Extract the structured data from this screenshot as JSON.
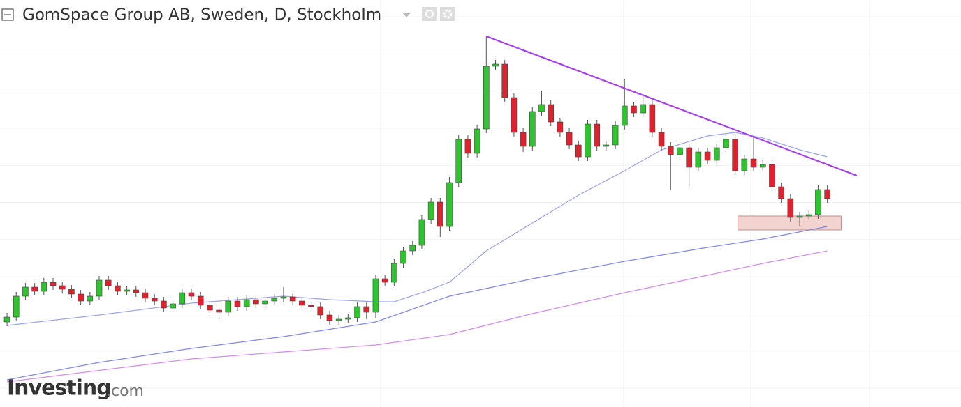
{
  "chart_data": {
    "type": "candlestick",
    "title": "GomSpace Group AB, Sweden, D, Stockholm",
    "xlim": [
      -0.76,
      103.5
    ],
    "ylim": [
      0,
      58.4
    ],
    "up_color": "#2fc42f",
    "down_color": "#e0212e",
    "open": [
      12.2,
      12.9,
      15.9,
      17.2,
      16.6,
      17.9,
      17.4,
      16.9,
      16.2,
      15.2,
      15.9,
      18.2,
      17.4,
      16.6,
      16.8,
      16.4,
      15.6,
      15.2,
      14.2,
      14.8,
      16.4,
      15.9,
      14.6,
      13.9,
      13.6,
      15.2,
      14.4,
      15.4,
      14.8,
      15.2,
      15.6,
      15.8,
      15.2,
      14.6,
      14.4,
      13.2,
      12.4,
      12.6,
      12.8,
      14.4,
      13.6,
      18.4,
      17.9,
      20.6,
      22.4,
      23.2,
      26.9,
      29.4,
      25.9,
      32.2,
      38.4,
      36.4,
      39.9,
      48.9,
      49.2,
      44.4,
      39.4,
      37.4,
      42.4,
      43.4,
      40.9,
      39.4,
      37.6,
      35.9,
      40.6,
      37.4,
      37.6,
      40.4,
      43.2,
      42.2,
      43.4,
      39.4,
      37.4,
      36.2,
      37.2,
      34.4,
      36.6,
      35.4,
      37.2,
      38.4,
      33.9,
      35.6,
      34.4,
      34.8,
      31.6,
      29.9,
      27.2,
      27.4,
      27.6,
      31.2
    ],
    "high": [
      13.5,
      16.5,
      17.8,
      17.8,
      18.5,
      18.5,
      18.0,
      17.5,
      16.8,
      16.5,
      18.8,
      18.8,
      18.0,
      17.4,
      17.4,
      17.0,
      16.2,
      15.8,
      15.4,
      17.0,
      17.0,
      16.5,
      15.2,
      14.5,
      15.8,
      15.8,
      16.0,
      16.0,
      15.8,
      16.2,
      17.2,
      16.4,
      15.8,
      15.2,
      15.0,
      13.8,
      13.2,
      13.4,
      15.0,
      15.0,
      19.0,
      19.0,
      21.2,
      23.0,
      23.8,
      27.5,
      30.0,
      30.0,
      33.0,
      39.0,
      39.0,
      40.5,
      53.2,
      49.8,
      49.8,
      45.0,
      40.0,
      43.0,
      45.3,
      44.0,
      41.5,
      40.0,
      38.2,
      41.2,
      41.2,
      38.2,
      41.0,
      47.1,
      43.8,
      44.8,
      44.0,
      40.0,
      38.0,
      37.8,
      37.8,
      37.2,
      37.2,
      37.8,
      39.0,
      39.0,
      36.2,
      38.9,
      35.4,
      35.4,
      32.2,
      30.5,
      28.0,
      28.2,
      31.8,
      31.8
    ],
    "low": [
      11.6,
      12.3,
      15.3,
      16.0,
      16.0,
      16.8,
      16.3,
      15.6,
      14.6,
      14.6,
      15.3,
      16.8,
      16.0,
      16.0,
      15.8,
      15.0,
      14.6,
      13.6,
      13.6,
      14.2,
      15.3,
      14.0,
      13.3,
      12.6,
      13.0,
      13.8,
      13.8,
      14.2,
      14.2,
      14.6,
      15.0,
      14.6,
      14.0,
      13.8,
      12.6,
      11.8,
      11.8,
      12.0,
      12.2,
      12.6,
      12.8,
      17.3,
      17.3,
      20.0,
      21.8,
      22.6,
      26.3,
      24.4,
      25.3,
      31.6,
      35.8,
      35.8,
      39.3,
      48.3,
      43.8,
      38.8,
      36.6,
      36.8,
      41.8,
      40.3,
      38.8,
      37.0,
      35.3,
      35.3,
      36.8,
      36.8,
      37.0,
      39.8,
      41.6,
      41.6,
      38.8,
      36.8,
      31.2,
      35.6,
      31.6,
      33.8,
      34.8,
      34.8,
      36.6,
      33.3,
      33.3,
      33.8,
      33.8,
      31.0,
      29.3,
      26.6,
      26.0,
      26.8,
      27.0,
      29.3
    ],
    "close": [
      12.9,
      15.9,
      17.2,
      16.6,
      17.9,
      17.4,
      16.9,
      16.2,
      15.2,
      15.9,
      18.2,
      17.4,
      16.6,
      16.8,
      16.4,
      15.6,
      15.2,
      14.2,
      14.8,
      16.4,
      15.9,
      14.6,
      13.9,
      13.6,
      15.2,
      14.4,
      15.4,
      14.8,
      15.2,
      15.6,
      15.8,
      15.2,
      14.6,
      14.4,
      13.2,
      12.4,
      12.6,
      12.8,
      14.4,
      13.6,
      18.4,
      17.9,
      20.6,
      22.4,
      23.2,
      26.9,
      29.4,
      25.9,
      32.2,
      38.4,
      36.4,
      39.9,
      48.9,
      49.2,
      44.4,
      39.4,
      37.4,
      42.4,
      43.4,
      40.9,
      39.4,
      37.6,
      35.9,
      40.6,
      37.4,
      37.6,
      40.4,
      43.2,
      42.2,
      43.4,
      39.4,
      37.4,
      36.2,
      37.2,
      34.4,
      36.6,
      35.4,
      37.2,
      38.4,
      33.9,
      35.6,
      34.4,
      34.8,
      31.6,
      29.9,
      27.2,
      27.4,
      27.6,
      31.2,
      29.9
    ],
    "lines": [
      {
        "color": "#9aa3f0",
        "x": [
          0,
          10,
          20,
          30,
          35,
          40,
          42,
          45,
          48,
          52,
          57,
          62,
          67,
          71,
          76,
          79,
          82,
          86,
          89
        ],
        "values": [
          11.7,
          13.2,
          14.9,
          15.9,
          15.4,
          15.1,
          15.1,
          16.4,
          17.9,
          22.4,
          26.4,
          30.4,
          33.9,
          36.9,
          38.9,
          39.4,
          38.6,
          36.9,
          35.9
        ]
      },
      {
        "color": "#7f86ef",
        "x": [
          0,
          10,
          20,
          30,
          40,
          48,
          57,
          67,
          76,
          82,
          89
        ],
        "values": [
          3.9,
          6.4,
          8.4,
          10.1,
          12.2,
          15.9,
          18.4,
          20.9,
          22.9,
          24.1,
          25.9
        ]
      },
      {
        "color": "#d08af0",
        "x": [
          0,
          20,
          40,
          48,
          57,
          67,
          76,
          82,
          89
        ],
        "values": [
          3.6,
          6.9,
          8.9,
          10.4,
          13.4,
          16.4,
          18.9,
          20.6,
          22.4
        ]
      }
    ],
    "trendline": {
      "color": "#a43ef0",
      "x": [
        52,
        92.2
      ],
      "values": [
        53.2,
        33.2
      ]
    },
    "zone": {
      "color": "#f2d3cf",
      "x": [
        79.3,
        90.5
      ],
      "values": [
        27.4,
        25.4
      ]
    }
  },
  "logo": {
    "brand": "Investing",
    "suffix": ".com"
  }
}
